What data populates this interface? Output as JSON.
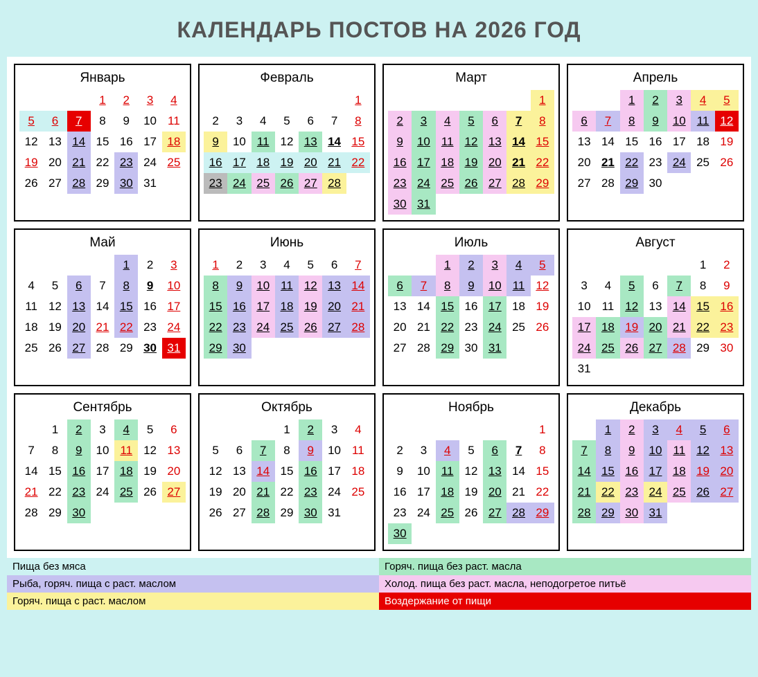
{
  "title": "Календарь постов на 2026 год",
  "colors": {
    "cyan": "#cdf2f2",
    "violet": "#c5c1f0",
    "yellow": "#fbf29b",
    "green": "#a8e8c3",
    "pink": "#f6c9f0",
    "red": "#e60000",
    "gray": "#bbbbbb"
  },
  "legend": [
    {
      "label": "Пища без мяса",
      "color": "cyan"
    },
    {
      "label": "Горяч. пища без раст. масла",
      "color": "green"
    },
    {
      "label": "Рыба, горяч. пища с раст. маслом",
      "color": "violet"
    },
    {
      "label": "Холод. пища без раст. масла, неподогретое питьё",
      "color": "pink"
    },
    {
      "label": "Горяч. пища с раст. маслом",
      "color": "yellow"
    },
    {
      "label": "Воздержание от пищи",
      "color": "red"
    }
  ],
  "months": [
    {
      "name": "Январь",
      "start": 3,
      "days": 31,
      "cells": {
        "1": {
          "u": 1,
          "red": 1
        },
        "2": {
          "u": 1,
          "red": 1
        },
        "3": {
          "u": 1,
          "red": 1
        },
        "4": {
          "u": 1,
          "red": 1
        },
        "5": {
          "u": 1,
          "red": 1,
          "bg": "cyan"
        },
        "6": {
          "u": 1,
          "red": 1,
          "bg": "cyan"
        },
        "7": {
          "u": 1,
          "bg": "red"
        },
        "11": {
          "red": 1
        },
        "14": {
          "u": 1,
          "bg": "violet"
        },
        "18": {
          "u": 1,
          "red": 1,
          "bg": "yellow"
        },
        "19": {
          "u": 1,
          "red": 1
        },
        "21": {
          "u": 1,
          "bg": "violet"
        },
        "23": {
          "u": 1,
          "bg": "violet"
        },
        "25": {
          "u": 1,
          "red": 1
        },
        "28": {
          "u": 1,
          "bg": "violet"
        },
        "30": {
          "u": 1,
          "bg": "violet"
        }
      }
    },
    {
      "name": "Февраль",
      "start": 6,
      "days": 28,
      "cells": {
        "1": {
          "u": 1,
          "red": 1
        },
        "8": {
          "u": 1,
          "red": 1
        },
        "9": {
          "u": 1,
          "bg": "yellow"
        },
        "11": {
          "u": 1,
          "bg": "green"
        },
        "13": {
          "u": 1,
          "bg": "green"
        },
        "14": {
          "u": 1,
          "bold": 1
        },
        "15": {
          "u": 1,
          "red": 1
        },
        "16": {
          "u": 1,
          "bg": "cyan"
        },
        "17": {
          "u": 1,
          "bg": "cyan"
        },
        "18": {
          "u": 1,
          "bg": "cyan"
        },
        "19": {
          "u": 1,
          "bg": "cyan"
        },
        "20": {
          "u": 1,
          "bg": "cyan"
        },
        "21": {
          "u": 1,
          "bg": "cyan"
        },
        "22": {
          "u": 1,
          "red": 1,
          "bg": "cyan"
        },
        "23": {
          "u": 1,
          "bg": "gray"
        },
        "24": {
          "u": 1,
          "bg": "green"
        },
        "25": {
          "u": 1,
          "bg": "pink"
        },
        "26": {
          "u": 1,
          "bg": "green"
        },
        "27": {
          "u": 1,
          "bg": "pink"
        },
        "28": {
          "u": 1,
          "bg": "yellow"
        }
      }
    },
    {
      "name": "Март",
      "start": 6,
      "days": 31,
      "cells": {
        "1": {
          "u": 1,
          "red": 1,
          "bg": "yellow"
        },
        "2": {
          "u": 1,
          "bg": "pink"
        },
        "3": {
          "u": 1,
          "bg": "green"
        },
        "4": {
          "u": 1,
          "bg": "pink"
        },
        "5": {
          "u": 1,
          "bg": "green"
        },
        "6": {
          "u": 1,
          "bg": "pink"
        },
        "7": {
          "u": 1,
          "bold": 1,
          "bg": "yellow"
        },
        "8": {
          "u": 1,
          "red": 1,
          "bg": "yellow"
        },
        "9": {
          "u": 1,
          "bg": "pink"
        },
        "10": {
          "u": 1,
          "bg": "green"
        },
        "11": {
          "u": 1,
          "bg": "pink"
        },
        "12": {
          "u": 1,
          "bg": "green"
        },
        "13": {
          "u": 1,
          "bg": "pink"
        },
        "14": {
          "u": 1,
          "bold": 1,
          "bg": "yellow"
        },
        "15": {
          "u": 1,
          "red": 1,
          "bg": "yellow"
        },
        "16": {
          "u": 1,
          "bg": "pink"
        },
        "17": {
          "u": 1,
          "bg": "green"
        },
        "18": {
          "u": 1,
          "bg": "pink"
        },
        "19": {
          "u": 1,
          "bg": "green"
        },
        "20": {
          "u": 1,
          "bg": "pink"
        },
        "21": {
          "u": 1,
          "bold": 1,
          "bg": "yellow"
        },
        "22": {
          "u": 1,
          "red": 1,
          "bg": "yellow"
        },
        "23": {
          "u": 1,
          "bg": "pink"
        },
        "24": {
          "u": 1,
          "bg": "green"
        },
        "25": {
          "u": 1,
          "bg": "pink"
        },
        "26": {
          "u": 1,
          "bg": "green"
        },
        "27": {
          "u": 1,
          "bg": "pink"
        },
        "28": {
          "u": 1,
          "bg": "yellow"
        },
        "29": {
          "u": 1,
          "red": 1,
          "bg": "yellow"
        },
        "30": {
          "u": 1,
          "bg": "pink"
        },
        "31": {
          "u": 1,
          "bg": "green"
        }
      }
    },
    {
      "name": "Апрель",
      "start": 2,
      "days": 30,
      "cells": {
        "1": {
          "u": 1,
          "bg": "pink"
        },
        "2": {
          "u": 1,
          "bg": "green"
        },
        "3": {
          "u": 1,
          "bg": "pink"
        },
        "4": {
          "u": 1,
          "red": 1,
          "bg": "yellow"
        },
        "5": {
          "u": 1,
          "red": 1,
          "bg": "yellow"
        },
        "6": {
          "u": 1,
          "bg": "pink"
        },
        "7": {
          "u": 1,
          "red": 1,
          "bg": "violet"
        },
        "8": {
          "u": 1,
          "bg": "pink"
        },
        "9": {
          "u": 1,
          "bg": "green"
        },
        "10": {
          "u": 1,
          "bg": "pink"
        },
        "11": {
          "u": 1,
          "bg": "violet"
        },
        "12": {
          "u": 1,
          "bg": "red"
        },
        "19": {
          "red": 1
        },
        "21": {
          "u": 1,
          "bold": 1
        },
        "22": {
          "u": 1,
          "bg": "violet"
        },
        "24": {
          "u": 1,
          "bg": "violet"
        },
        "26": {
          "red": 1
        },
        "29": {
          "u": 1,
          "bg": "violet"
        }
      }
    },
    {
      "name": "Май",
      "start": 4,
      "days": 31,
      "cells": {
        "1": {
          "u": 1,
          "bg": "violet"
        },
        "3": {
          "u": 1,
          "red": 1
        },
        "6": {
          "u": 1,
          "bg": "violet"
        },
        "8": {
          "u": 1,
          "bg": "violet"
        },
        "9": {
          "u": 1,
          "bold": 1
        },
        "10": {
          "u": 1,
          "red": 1
        },
        "13": {
          "u": 1,
          "bg": "violet"
        },
        "15": {
          "u": 1,
          "bg": "violet"
        },
        "16": {},
        "17": {
          "u": 1,
          "red": 1
        },
        "20": {
          "u": 1,
          "bg": "violet"
        },
        "21": {
          "u": 1,
          "red": 1
        },
        "22": {
          "u": 1,
          "red": 1,
          "bg": "violet"
        },
        "24": {
          "u": 1,
          "red": 1
        },
        "27": {
          "u": 1,
          "bg": "violet"
        },
        "30": {
          "u": 1,
          "bold": 1
        },
        "31": {
          "u": 1,
          "bg": "red"
        }
      }
    },
    {
      "name": "Июнь",
      "start": 0,
      "days": 30,
      "cells": {
        "1": {
          "u": 1,
          "red": 1
        },
        "7": {
          "u": 1,
          "red": 1
        },
        "8": {
          "u": 1,
          "bg": "green"
        },
        "9": {
          "u": 1,
          "bg": "violet"
        },
        "10": {
          "u": 1,
          "bg": "pink"
        },
        "11": {
          "u": 1,
          "bg": "violet"
        },
        "12": {
          "u": 1,
          "bg": "pink"
        },
        "13": {
          "u": 1,
          "bg": "violet"
        },
        "14": {
          "u": 1,
          "red": 1,
          "bg": "violet"
        },
        "15": {
          "u": 1,
          "bg": "green"
        },
        "16": {
          "u": 1,
          "bg": "violet"
        },
        "17": {
          "u": 1,
          "bg": "pink"
        },
        "18": {
          "u": 1,
          "bg": "violet"
        },
        "19": {
          "u": 1,
          "bg": "pink"
        },
        "20": {
          "u": 1,
          "bg": "violet"
        },
        "21": {
          "u": 1,
          "red": 1,
          "bg": "violet"
        },
        "22": {
          "u": 1,
          "bg": "green"
        },
        "23": {
          "u": 1,
          "bg": "violet"
        },
        "24": {
          "u": 1,
          "bg": "pink"
        },
        "25": {
          "u": 1,
          "bg": "violet"
        },
        "26": {
          "u": 1,
          "bg": "pink"
        },
        "27": {
          "u": 1,
          "bg": "violet"
        },
        "28": {
          "u": 1,
          "red": 1,
          "bg": "violet"
        },
        "29": {
          "u": 1,
          "bg": "green"
        },
        "30": {
          "u": 1,
          "bg": "violet"
        }
      }
    },
    {
      "name": "Июль",
      "start": 2,
      "days": 31,
      "cells": {
        "1": {
          "u": 1,
          "bg": "pink"
        },
        "2": {
          "u": 1,
          "bg": "violet"
        },
        "3": {
          "u": 1,
          "bg": "pink"
        },
        "4": {
          "u": 1,
          "bg": "violet"
        },
        "5": {
          "u": 1,
          "red": 1,
          "bg": "violet"
        },
        "6": {
          "u": 1,
          "bg": "green"
        },
        "7": {
          "u": 1,
          "red": 1,
          "bg": "violet"
        },
        "8": {
          "u": 1,
          "bg": "pink"
        },
        "9": {
          "u": 1,
          "bg": "violet"
        },
        "10": {
          "u": 1,
          "bg": "pink"
        },
        "11": {
          "u": 1,
          "bg": "violet"
        },
        "12": {
          "u": 1,
          "red": 1
        },
        "15": {
          "u": 1,
          "bg": "green"
        },
        "17": {
          "u": 1,
          "bg": "green"
        },
        "19": {
          "red": 1
        },
        "22": {
          "u": 1,
          "bg": "green"
        },
        "24": {
          "u": 1,
          "bg": "green"
        },
        "26": {
          "red": 1
        },
        "29": {
          "u": 1,
          "bg": "green"
        },
        "31": {
          "u": 1,
          "bg": "green"
        }
      }
    },
    {
      "name": "Август",
      "start": 5,
      "days": 31,
      "cells": {
        "2": {
          "red": 1
        },
        "5": {
          "u": 1,
          "bg": "green"
        },
        "7": {
          "u": 1,
          "bg": "green"
        },
        "9": {
          "red": 1
        },
        "12": {
          "u": 1,
          "bg": "green"
        },
        "14": {
          "u": 1,
          "bg": "pink"
        },
        "15": {
          "u": 1,
          "bg": "yellow"
        },
        "16": {
          "u": 1,
          "red": 1,
          "bg": "yellow"
        },
        "17": {
          "u": 1,
          "bg": "pink"
        },
        "18": {
          "u": 1,
          "bg": "green"
        },
        "19": {
          "u": 1,
          "red": 1,
          "bg": "violet"
        },
        "20": {
          "u": 1,
          "bg": "green"
        },
        "21": {
          "u": 1,
          "bg": "pink"
        },
        "22": {
          "u": 1,
          "bg": "yellow"
        },
        "23": {
          "u": 1,
          "red": 1,
          "bg": "yellow"
        },
        "24": {
          "u": 1,
          "bg": "pink"
        },
        "25": {
          "u": 1,
          "bg": "green"
        },
        "26": {
          "u": 1,
          "bg": "pink"
        },
        "27": {
          "u": 1,
          "bg": "green"
        },
        "28": {
          "u": 1,
          "red": 1,
          "bg": "violet"
        },
        "30": {
          "red": 1
        }
      }
    },
    {
      "name": "Сентябрь",
      "start": 1,
      "days": 30,
      "cells": {
        "2": {
          "u": 1,
          "bg": "green"
        },
        "4": {
          "u": 1,
          "bg": "green"
        },
        "6": {
          "red": 1
        },
        "9": {
          "u": 1,
          "bg": "green"
        },
        "11": {
          "u": 1,
          "red": 1,
          "bg": "yellow"
        },
        "13": {
          "red": 1
        },
        "16": {
          "u": 1,
          "bg": "green"
        },
        "18": {
          "u": 1,
          "bg": "green"
        },
        "20": {
          "red": 1
        },
        "21": {
          "u": 1,
          "red": 1
        },
        "23": {
          "u": 1,
          "bg": "green"
        },
        "25": {
          "u": 1,
          "bg": "green"
        },
        "27": {
          "u": 1,
          "red": 1,
          "bg": "yellow"
        },
        "30": {
          "u": 1,
          "bg": "green"
        }
      }
    },
    {
      "name": "Октябрь",
      "start": 3,
      "days": 31,
      "cells": {
        "2": {
          "u": 1,
          "bg": "green"
        },
        "4": {
          "red": 1
        },
        "7": {
          "u": 1,
          "bg": "green"
        },
        "9": {
          "u": 1,
          "red": 1,
          "bg": "violet"
        },
        "11": {
          "red": 1
        },
        "14": {
          "u": 1,
          "red": 1,
          "bg": "violet"
        },
        "16": {
          "u": 1,
          "bg": "green"
        },
        "18": {
          "red": 1
        },
        "21": {
          "u": 1,
          "bg": "green"
        },
        "23": {
          "u": 1,
          "bg": "green"
        },
        "25": {
          "red": 1
        },
        "28": {
          "u": 1,
          "bg": "green"
        },
        "30": {
          "u": 1,
          "bg": "green"
        }
      }
    },
    {
      "name": "Ноябрь",
      "start": 6,
      "days": 30,
      "cells": {
        "1": {
          "red": 1
        },
        "4": {
          "u": 1,
          "red": 1,
          "bg": "violet"
        },
        "6": {
          "u": 1,
          "bg": "green"
        },
        "7": {
          "u": 1,
          "bold": 1
        },
        "8": {
          "red": 1
        },
        "11": {
          "u": 1,
          "bg": "green"
        },
        "13": {
          "u": 1,
          "bg": "green"
        },
        "15": {
          "red": 1
        },
        "18": {
          "u": 1,
          "bg": "green"
        },
        "20": {
          "u": 1,
          "bg": "green"
        },
        "22": {
          "red": 1
        },
        "25": {
          "u": 1,
          "bg": "green"
        },
        "27": {
          "u": 1,
          "bg": "green"
        },
        "28": {
          "u": 1,
          "bg": "violet"
        },
        "29": {
          "u": 1,
          "red": 1,
          "bg": "violet"
        },
        "30": {
          "u": 1,
          "bg": "green"
        }
      }
    },
    {
      "name": "Декабрь",
      "start": 1,
      "days": 31,
      "cells": {
        "1": {
          "u": 1,
          "bg": "violet"
        },
        "2": {
          "u": 1,
          "bg": "pink"
        },
        "3": {
          "u": 1,
          "bg": "violet"
        },
        "4": {
          "u": 1,
          "red": 1,
          "bg": "violet"
        },
        "5": {
          "u": 1,
          "bg": "violet"
        },
        "6": {
          "u": 1,
          "red": 1,
          "bg": "violet"
        },
        "7": {
          "u": 1,
          "bg": "green"
        },
        "8": {
          "u": 1,
          "bg": "violet"
        },
        "9": {
          "u": 1,
          "bg": "pink"
        },
        "10": {
          "u": 1,
          "bg": "violet"
        },
        "11": {
          "u": 1,
          "bg": "pink"
        },
        "12": {
          "u": 1,
          "bg": "violet"
        },
        "13": {
          "u": 1,
          "red": 1,
          "bg": "violet"
        },
        "14": {
          "u": 1,
          "bg": "green"
        },
        "15": {
          "u": 1,
          "bg": "violet"
        },
        "16": {
          "u": 1,
          "bg": "pink"
        },
        "17": {
          "u": 1,
          "bg": "violet"
        },
        "18": {
          "u": 1,
          "bg": "pink"
        },
        "19": {
          "u": 1,
          "red": 1,
          "bg": "violet"
        },
        "20": {
          "u": 1,
          "red": 1,
          "bg": "violet"
        },
        "21": {
          "u": 1,
          "bg": "green"
        },
        "22": {
          "u": 1,
          "bg": "yellow"
        },
        "23": {
          "u": 1,
          "bg": "pink"
        },
        "24": {
          "u": 1,
          "bg": "yellow"
        },
        "25": {
          "u": 1,
          "bg": "pink"
        },
        "26": {
          "u": 1,
          "bg": "violet"
        },
        "27": {
          "u": 1,
          "red": 1,
          "bg": "violet"
        },
        "28": {
          "u": 1,
          "bg": "green"
        },
        "29": {
          "u": 1,
          "bg": "violet"
        },
        "30": {
          "u": 1,
          "bg": "pink"
        },
        "31": {
          "u": 1,
          "bg": "violet"
        }
      }
    }
  ]
}
